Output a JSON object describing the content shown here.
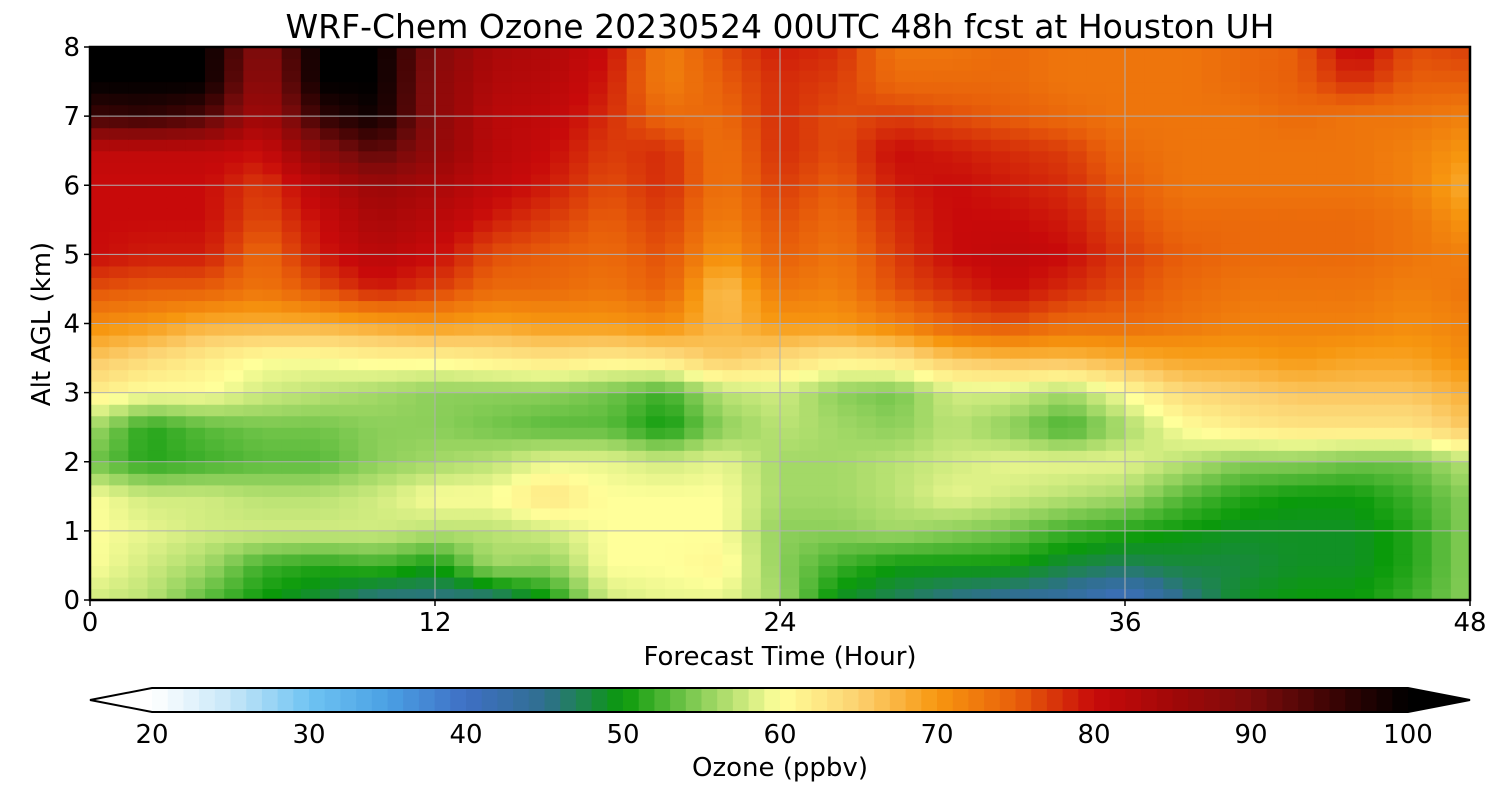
{
  "chart_data": {
    "type": "heatmap",
    "title": "WRF-Chem Ozone  20230524 00UTC 48h fcst at Houston UH",
    "xlabel": "Forecast Time (Hour)",
    "ylabel": "Alt AGL (km)",
    "xlim": [
      0,
      48
    ],
    "ylim": [
      0,
      8
    ],
    "xticks": [
      0,
      12,
      24,
      36,
      48
    ],
    "yticks": [
      0,
      1,
      2,
      3,
      4,
      5,
      6,
      7,
      8
    ],
    "grid": true,
    "x": [
      0,
      2,
      4,
      6,
      8,
      10,
      12,
      14,
      16,
      18,
      20,
      22,
      24,
      26,
      28,
      30,
      32,
      34,
      36,
      38,
      40,
      42,
      44,
      46,
      48
    ],
    "y": [
      0,
      0.5,
      1,
      1.5,
      2,
      2.5,
      3,
      3.5,
      4,
      4.5,
      5,
      5.5,
      6,
      6.5,
      7,
      7.5,
      8
    ],
    "z": [
      [
        58,
        57,
        53,
        50,
        48,
        45,
        45,
        45,
        50,
        58,
        59,
        59,
        56,
        49,
        47,
        45,
        44,
        43,
        40,
        45,
        49,
        50,
        50,
        52,
        55
      ],
      [
        60,
        58,
        56,
        52,
        51,
        52,
        50,
        56,
        55,
        60,
        60,
        61,
        55,
        52,
        50,
        50,
        50,
        48,
        47,
        48,
        48,
        49,
        49,
        51,
        55
      ],
      [
        60,
        59,
        58,
        58,
        58,
        58,
        57,
        57,
        58,
        60,
        60,
        60,
        55,
        55,
        56,
        55,
        54,
        52,
        51,
        50,
        49,
        49,
        49,
        51,
        55
      ],
      [
        60,
        58,
        58,
        57,
        57,
        58,
        60,
        60,
        63,
        60,
        60,
        60,
        56,
        56,
        57,
        59,
        58,
        57,
        56,
        53,
        51,
        50,
        50,
        52,
        55
      ],
      [
        54,
        51,
        52,
        53,
        53,
        55,
        56,
        57,
        59,
        59,
        58,
        59,
        56,
        56,
        57,
        58,
        59,
        59,
        59,
        57,
        55,
        55,
        54,
        54,
        57
      ],
      [
        56,
        51,
        53,
        54,
        54,
        55,
        55,
        54,
        53,
        53,
        50,
        55,
        57,
        56,
        55,
        57,
        55,
        52,
        56,
        60,
        62,
        63,
        63,
        63,
        66
      ],
      [
        62,
        60,
        60,
        58,
        57,
        56,
        55,
        55,
        55,
        54,
        52,
        57,
        58,
        55,
        54,
        58,
        58,
        56,
        60,
        64,
        65,
        66,
        66,
        66,
        68
      ],
      [
        66,
        64,
        62,
        60,
        60,
        61,
        61,
        62,
        63,
        62,
        63,
        66,
        64,
        62,
        63,
        66,
        67,
        67,
        68,
        69,
        69,
        70,
        69,
        69,
        71
      ],
      [
        71,
        70,
        68,
        68,
        68,
        69,
        70,
        69,
        70,
        70,
        71,
        67,
        70,
        70,
        72,
        75,
        76,
        74,
        74,
        73,
        72,
        72,
        72,
        71,
        72
      ],
      [
        76,
        75,
        75,
        73,
        76,
        79,
        77,
        74,
        74,
        73,
        75,
        66,
        73,
        72,
        76,
        78,
        80,
        78,
        76,
        74,
        73,
        73,
        73,
        72,
        73
      ],
      [
        80,
        79,
        79,
        74,
        79,
        82,
        80,
        76,
        75,
        74,
        76,
        70,
        75,
        73,
        77,
        80,
        81,
        80,
        77,
        75,
        74,
        74,
        74,
        73,
        72
      ],
      [
        80,
        80,
        80,
        76,
        80,
        84,
        82,
        79,
        77,
        75,
        77,
        72,
        76,
        74,
        78,
        80,
        80,
        79,
        76,
        74,
        74,
        74,
        74,
        73,
        70
      ],
      [
        80,
        80,
        80,
        77,
        82,
        86,
        84,
        81,
        79,
        76,
        78,
        73,
        77,
        75,
        79,
        80,
        79,
        78,
        75,
        73,
        73,
        73,
        73,
        72,
        68
      ],
      [
        81,
        81,
        81,
        80,
        88,
        93,
        87,
        82,
        80,
        77,
        78,
        73,
        78,
        76,
        80,
        79,
        78,
        77,
        74,
        73,
        73,
        73,
        73,
        72,
        70
      ],
      [
        95,
        96,
        94,
        84,
        96,
        99,
        88,
        82,
        81,
        78,
        74,
        74,
        78,
        76,
        77,
        76,
        75,
        74,
        73,
        73,
        73,
        74,
        73,
        73,
        72
      ],
      [
        100,
        100,
        100,
        86,
        100,
        100,
        88,
        83,
        82,
        79,
        72,
        75,
        78,
        77,
        74,
        74,
        74,
        73,
        73,
        73,
        74,
        75,
        78,
        75,
        75
      ],
      [
        100,
        100,
        100,
        88,
        100,
        100,
        89,
        84,
        83,
        80,
        72,
        76,
        79,
        78,
        73,
        73,
        74,
        73,
        73,
        73,
        74,
        75,
        81,
        76,
        77
      ]
    ]
  },
  "colorbar": {
    "label": "Ozone  (ppbv)",
    "min": 20,
    "max": 100,
    "extend": "both",
    "ticks": [
      20,
      30,
      40,
      50,
      60,
      70,
      80,
      90,
      100
    ],
    "stops": [
      [
        20,
        "#ffffff"
      ],
      [
        25,
        "#c6e6f8"
      ],
      [
        30,
        "#6fc3f2"
      ],
      [
        35,
        "#4aa0e4"
      ],
      [
        40,
        "#3f6fc4"
      ],
      [
        45,
        "#2f6f8f"
      ],
      [
        50,
        "#0a9a0a"
      ],
      [
        55,
        "#8ccf5a"
      ],
      [
        60,
        "#ffff9a"
      ],
      [
        65,
        "#fcd170"
      ],
      [
        70,
        "#f7970f"
      ],
      [
        75,
        "#e85f0a"
      ],
      [
        80,
        "#c80a0a"
      ],
      [
        85,
        "#a10808"
      ],
      [
        90,
        "#7c0b0b"
      ],
      [
        95,
        "#3e0404"
      ],
      [
        100,
        "#000000"
      ]
    ]
  }
}
